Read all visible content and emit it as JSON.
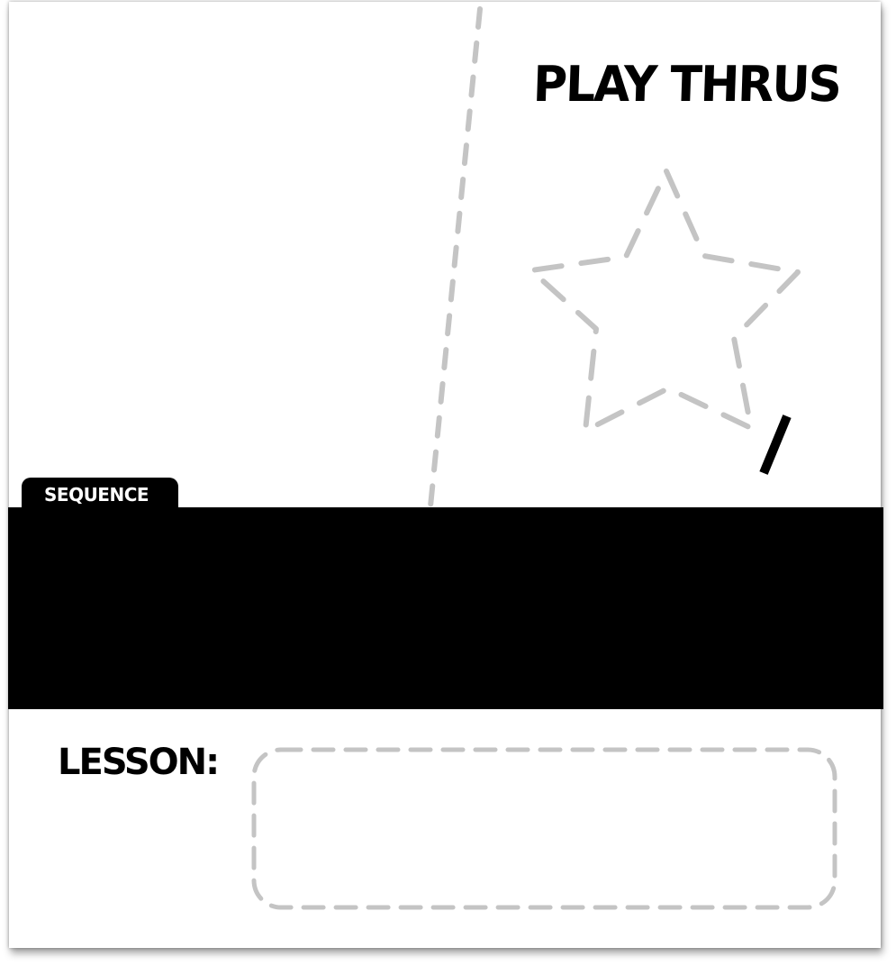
{
  "header": {
    "title": "PLAY THRUS"
  },
  "sequence_tab": {
    "label": "SEQUENCE"
  },
  "lesson": {
    "label": "LESSON:"
  },
  "colors": {
    "ink": "#000000",
    "paper": "#ffffff",
    "dashed_guide": "#c4c4c4"
  }
}
